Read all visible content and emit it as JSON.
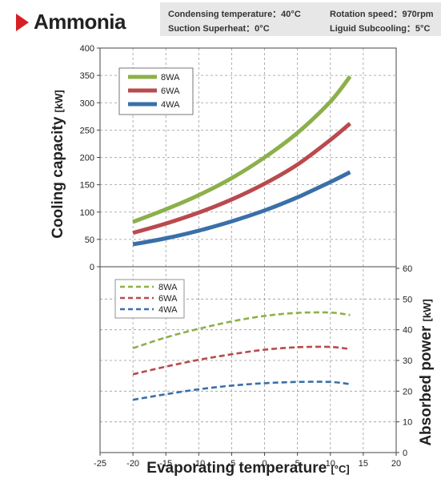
{
  "header": {
    "title": "Ammonia",
    "conditions": [
      "Condensing temperature：40°C",
      "Rotation speed：970rpm",
      "Suction Superheat：0°C",
      "Liguid Subcooling：5°C"
    ]
  },
  "colors": {
    "8WA": "#8cb04a",
    "6WA": "#b94a4d",
    "4WA": "#3a6fa8",
    "accent": "#d81e25"
  },
  "chart_data": [
    {
      "type": "line",
      "title": "",
      "xlabel": "Evaporating temperature",
      "xunit": "[°C]",
      "ylabel": "Cooling capacity",
      "yunit": "[kW]",
      "xlim": [
        -25,
        20
      ],
      "ylim": [
        0,
        400
      ],
      "x_ticks": [
        -25,
        -20,
        -15,
        -10,
        -5,
        0,
        5,
        10,
        15,
        20
      ],
      "y_ticks": [
        0,
        50,
        100,
        150,
        200,
        250,
        300,
        350,
        400
      ],
      "grid": true,
      "legend": "top-left",
      "line_style": "solid",
      "series": [
        {
          "name": "8WA",
          "color": "#8cb04a",
          "points": [
            [
              -20,
              82
            ],
            [
              -15,
              105
            ],
            [
              -10,
              131
            ],
            [
              -5,
              162
            ],
            [
              0,
              200
            ],
            [
              5,
              245
            ],
            [
              10,
              302
            ],
            [
              13,
              348
            ]
          ]
        },
        {
          "name": "6WA",
          "color": "#b94a4d",
          "points": [
            [
              -20,
              62
            ],
            [
              -15,
              79
            ],
            [
              -10,
              99
            ],
            [
              -5,
              123
            ],
            [
              0,
              152
            ],
            [
              5,
              187
            ],
            [
              10,
              232
            ],
            [
              13,
              262
            ]
          ]
        },
        {
          "name": "4WA",
          "color": "#3a6fa8",
          "points": [
            [
              -20,
              41
            ],
            [
              -15,
              52
            ],
            [
              -10,
              66
            ],
            [
              -5,
              83
            ],
            [
              0,
              103
            ],
            [
              5,
              127
            ],
            [
              10,
              155
            ],
            [
              13,
              173
            ]
          ]
        }
      ]
    },
    {
      "type": "line",
      "title": "",
      "xlabel": "Evaporating temperature",
      "xunit": "[°C]",
      "ylabel": "Absorbed power",
      "yunit": "[kW]",
      "xlim": [
        -25,
        20
      ],
      "ylim": [
        0,
        60
      ],
      "y_ticks": [
        0,
        10,
        20,
        30,
        40,
        50,
        60
      ],
      "grid": true,
      "legend": "top-left",
      "line_style": "dashed",
      "series": [
        {
          "name": "8WA",
          "color": "#8cb04a",
          "points": [
            [
              -20,
              34
            ],
            [
              -15,
              37.5
            ],
            [
              -10,
              40.3
            ],
            [
              -5,
              42.7
            ],
            [
              0,
              44.5
            ],
            [
              5,
              45.5
            ],
            [
              10,
              45.6
            ],
            [
              13,
              44.8
            ]
          ]
        },
        {
          "name": "6WA",
          "color": "#b94a4d",
          "points": [
            [
              -20,
              25.5
            ],
            [
              -15,
              28
            ],
            [
              -10,
              30.2
            ],
            [
              -5,
              32
            ],
            [
              0,
              33.5
            ],
            [
              5,
              34.3
            ],
            [
              10,
              34.4
            ],
            [
              13,
              33.7
            ]
          ]
        },
        {
          "name": "4WA",
          "color": "#3a6fa8",
          "points": [
            [
              -20,
              17.2
            ],
            [
              -15,
              19
            ],
            [
              -10,
              20.6
            ],
            [
              -5,
              21.8
            ],
            [
              0,
              22.6
            ],
            [
              5,
              23
            ],
            [
              10,
              23
            ],
            [
              13,
              22.3
            ]
          ]
        }
      ]
    }
  ]
}
